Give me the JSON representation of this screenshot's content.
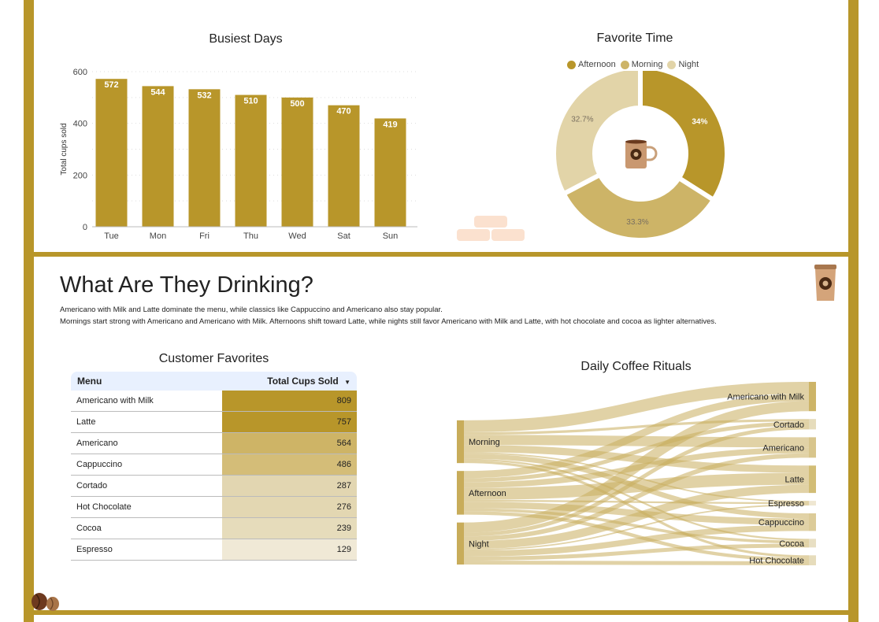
{
  "theme": {
    "accent": "#b8962a",
    "afternoon": "#b8962a",
    "morning": "#cdb467",
    "night": "#e2d4a8"
  },
  "busiest_days": {
    "chart_data": {
      "type": "bar",
      "title": "Busiest Days",
      "ylabel": "Total cups sold",
      "xlabel": "",
      "categories": [
        "Tue",
        "Mon",
        "Fri",
        "Thu",
        "Wed",
        "Sat",
        "Sun"
      ],
      "values": [
        572,
        544,
        532,
        510,
        500,
        470,
        419
      ],
      "yticks": [
        "0",
        "200",
        "400",
        "600"
      ],
      "ylim": [
        0,
        600
      ],
      "grid": true,
      "color": "#b8962a"
    }
  },
  "favorite_time": {
    "chart_data": {
      "type": "pie",
      "title": "Favorite Time",
      "legend": [
        "Afternoon",
        "Morning",
        "Night"
      ],
      "legend_position": "top",
      "values": [
        34,
        33.3,
        32.7
      ],
      "labels": [
        "34%",
        "33.3%",
        "32.7%"
      ],
      "colors": [
        "#b8962a",
        "#cdb467",
        "#e2d4a8"
      ]
    },
    "center_icon": "coffee-mug-icon"
  },
  "section": {
    "heading": "What Are They Drinking?",
    "description_1": "Americano with Milk and Latte dominate the menu, while classics like Cappuccino and Americano also stay popular.",
    "description_2": "Mornings start strong with Americano and Americano with Milk. Afternoons shift toward Latte, while nights still favor Americano with Milk and Latte, with hot chocolate and cocoa as lighter alternatives."
  },
  "customer_favorites": {
    "title": "Customer Favorites",
    "columns": [
      "Menu",
      "Total Cups Sold"
    ],
    "sort_icon": "sort-desc-icon",
    "rows": [
      {
        "menu": "Americano with Milk",
        "cups": "809",
        "color": "#b8962a"
      },
      {
        "menu": "Latte",
        "cups": "757",
        "color": "#b8962a"
      },
      {
        "menu": "Americano",
        "cups": "564",
        "color": "#ceb466"
      },
      {
        "menu": "Cappuccino",
        "cups": "486",
        "color": "#d4bd78"
      },
      {
        "menu": "Cortado",
        "cups": "287",
        "color": "#e2d6b1"
      },
      {
        "menu": "Hot Chocolate",
        "cups": "276",
        "color": "#e3d7b2"
      },
      {
        "menu": "Cocoa",
        "cups": "239",
        "color": "#e6dcbb"
      },
      {
        "menu": "Espresso",
        "cups": "129",
        "color": "#f0e9d6"
      }
    ]
  },
  "daily_rituals": {
    "chart_data": {
      "type": "sankey",
      "title": "Daily Coffee Rituals",
      "sources": [
        "Morning",
        "Afternoon",
        "Night"
      ],
      "targets": [
        "Americano with Milk",
        "Cortado",
        "Americano",
        "Latte",
        "Espresso",
        "Cappuccino",
        "Cocoa",
        "Hot Chocolate"
      ],
      "links": [
        [
          330,
          70,
          280,
          200,
          40,
          140,
          50,
          71
        ],
        [
          200,
          110,
          160,
          330,
          50,
          180,
          80,
          96
        ],
        [
          279,
          107,
          124,
          227,
          39,
          166,
          109,
          109
        ]
      ]
    }
  }
}
